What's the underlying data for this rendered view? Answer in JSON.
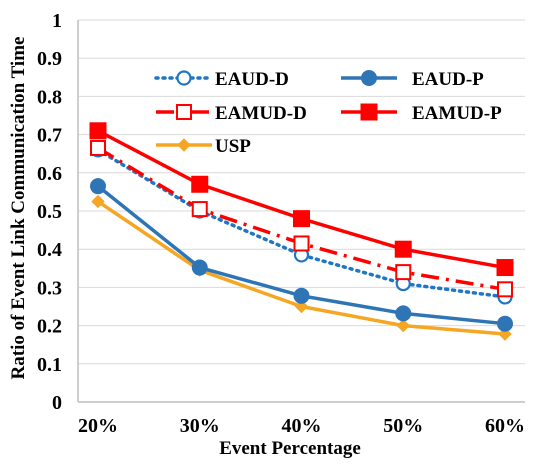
{
  "chart_data": {
    "type": "line",
    "title": "",
    "xlabel": "Event Percentage",
    "ylabel": "Ratio of Event Link Communication Time",
    "categories": [
      "20%",
      "30%",
      "40%",
      "50%",
      "60%"
    ],
    "ylim": [
      0,
      1
    ],
    "yticks": [
      "0",
      "0.1",
      "0.2",
      "0.3",
      "0.4",
      "0.5",
      "0.6",
      "0.7",
      "0.8",
      "0.9",
      "1"
    ],
    "grid": "horizontal",
    "legend_placement": "top",
    "series": [
      {
        "name": "EAUD-D",
        "values": [
          0.66,
          0.5,
          0.385,
          0.31,
          0.275
        ],
        "color": "#1f77c4",
        "line": "dotted",
        "marker": "open-circle"
      },
      {
        "name": "EAUD-P",
        "values": [
          0.565,
          0.352,
          0.278,
          0.232,
          0.205
        ],
        "color": "#2e75b6",
        "line": "solid",
        "marker": "filled-circle"
      },
      {
        "name": "EAMUD-D",
        "values": [
          0.665,
          0.505,
          0.415,
          0.34,
          0.295
        ],
        "color": "#ff0000",
        "line": "dash-dot",
        "marker": "open-square"
      },
      {
        "name": "EAMUD-P",
        "values": [
          0.71,
          0.57,
          0.48,
          0.4,
          0.352
        ],
        "color": "#ff0000",
        "line": "solid",
        "marker": "filled-square"
      },
      {
        "name": "USP",
        "values": [
          0.525,
          0.345,
          0.25,
          0.2,
          0.178
        ],
        "color": "#f5a623",
        "line": "solid",
        "marker": "filled-diamond"
      }
    ]
  }
}
